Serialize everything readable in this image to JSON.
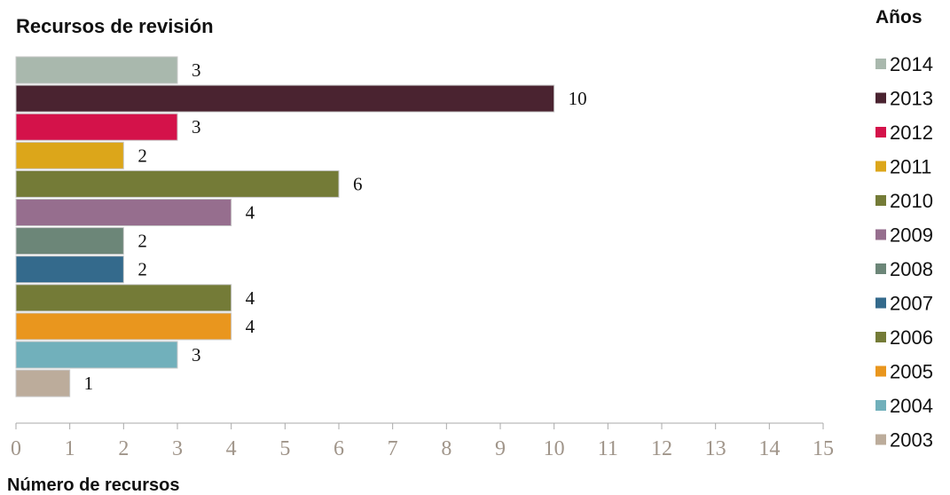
{
  "chart_data": {
    "type": "bar",
    "orientation": "horizontal",
    "title": "Recursos de revisión",
    "xlabel": "Número de recursos",
    "ylabel": "",
    "xlim": [
      0,
      15
    ],
    "x_ticks": [
      "0",
      "1",
      "2",
      "3",
      "4",
      "5",
      "6",
      "7",
      "8",
      "9",
      "10",
      "11",
      "12",
      "13",
      "14",
      "15"
    ],
    "legend_title": "Años",
    "legend_position": "right",
    "grid": false,
    "categories": [
      "2014",
      "2013",
      "2012",
      "2011",
      "2010",
      "2009",
      "2008",
      "2007",
      "2006",
      "2005",
      "2004",
      "2003"
    ],
    "values": [
      3,
      10,
      3,
      2,
      6,
      4,
      2,
      2,
      4,
      4,
      3,
      1
    ],
    "colors": [
      "#a9b8ad",
      "#4a2330",
      "#d4124a",
      "#dca61a",
      "#747b37",
      "#966e8e",
      "#6c8678",
      "#346a8c",
      "#747b37",
      "#e9961e",
      "#71b0bb",
      "#bcac9b"
    ]
  }
}
